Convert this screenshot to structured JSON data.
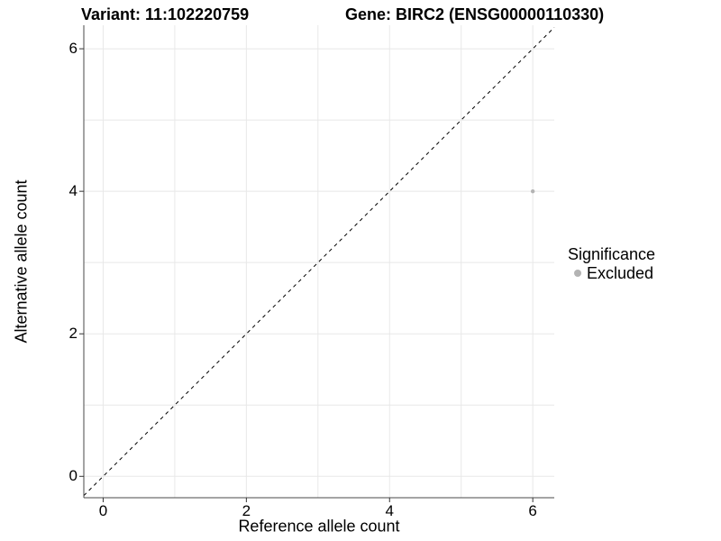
{
  "header": {
    "variant_title": "Variant: 11:102220759",
    "gene_title": "Gene: BIRC2 (ENSG00000110330)"
  },
  "legend": {
    "title": "Significance",
    "items": [
      {
        "label": "Excluded",
        "color": "#b3b3b3"
      }
    ]
  },
  "chart_data": {
    "type": "scatter",
    "title": "Variant: 11:102220759 | Gene: BIRC2 (ENSG00000110330)",
    "xlabel": "Reference allele count",
    "ylabel": "Alternative allele count",
    "xlim": [
      -0.27,
      6.3
    ],
    "ylim": [
      -0.3,
      6.33
    ],
    "x_ticks": [
      0,
      2,
      4,
      6
    ],
    "y_ticks": [
      0,
      2,
      4,
      6
    ],
    "grid_lines_at": [
      0,
      1,
      2,
      3,
      4,
      5,
      6
    ],
    "grid": true,
    "legend_position": "right",
    "series": [
      {
        "name": "Excluded",
        "color": "#b3b3b3",
        "points": [
          {
            "x": 6,
            "y": 4
          }
        ]
      }
    ],
    "reference_line": {
      "shape": "diagonal",
      "equation": "y = x",
      "style": "dashed",
      "color": "#000000"
    }
  },
  "colors": {
    "background": "#ffffff",
    "grid": "#e8e8e8",
    "axis_line": "#4a4a4a",
    "tick_mark": "#333333",
    "text": "#000000",
    "point": "#b3b3b3"
  }
}
